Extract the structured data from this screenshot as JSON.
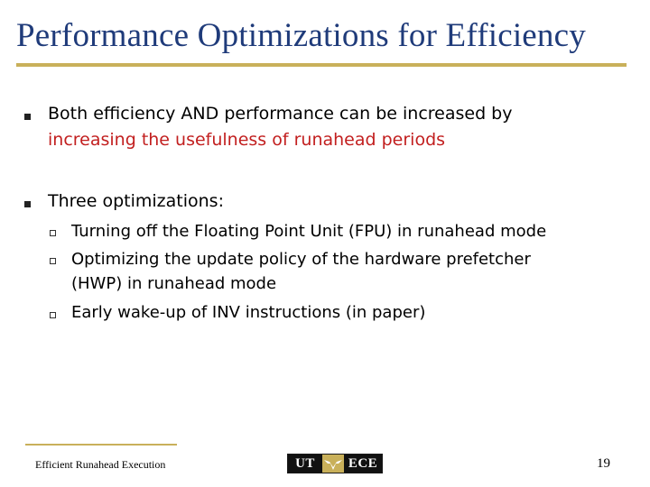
{
  "slide": {
    "title": "Performance Optimizations for Efficiency",
    "bullets": [
      {
        "lines": [
          "Both efficiency AND performance can be increased by",
          "increasing the usefulness of runahead periods"
        ]
      },
      {
        "lines": [
          "Three optimizations:"
        ],
        "sub_bullets": [
          {
            "lines": [
              "Turning off the Floating Point Unit (FPU) in runahead mode"
            ]
          },
          {
            "lines": [
              "Optimizing the update policy of the hardware prefetcher",
              "(HWP) in runahead mode"
            ]
          },
          {
            "lines": [
              "Early wake-up of INV instructions (in paper)"
            ]
          }
        ]
      }
    ]
  },
  "footer": {
    "left_text": "Efficient Runahead Execution",
    "logo_left": "UT",
    "logo_right": "ECE",
    "page_number": "19"
  },
  "colors": {
    "title": "#1f3b7a",
    "accent_line": "#c9b05a",
    "emphasis": "#c21f1f",
    "text": "#000000"
  }
}
